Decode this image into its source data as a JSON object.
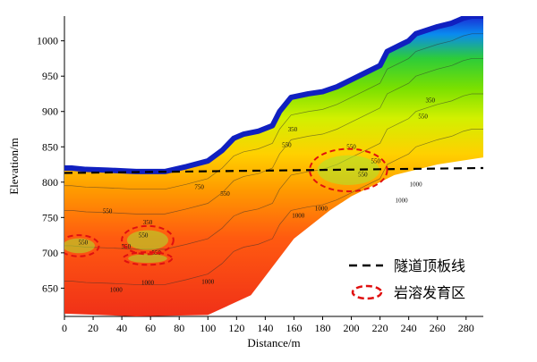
{
  "chart_data": {
    "type": "heatmap",
    "xlabel": "Distance/m",
    "ylabel": "Elevation/m",
    "xlim": [
      0,
      292
    ],
    "ylim": [
      610,
      1035
    ],
    "x_ticks": [
      0,
      20,
      40,
      60,
      80,
      100,
      120,
      140,
      160,
      180,
      200,
      220,
      240,
      260,
      280
    ],
    "y_ticks": [
      650,
      700,
      750,
      800,
      850,
      900,
      950,
      1000
    ],
    "grid": false,
    "colorscale": [
      "#1a2ad4",
      "#0a8af0",
      "#2ccc3a",
      "#7ae000",
      "#d2f000",
      "#ffd000",
      "#ff9a00",
      "#ff5a10",
      "#f03018"
    ],
    "surface_profile": {
      "x": [
        0,
        5,
        15,
        30,
        50,
        70,
        85,
        100,
        110,
        118,
        125,
        135,
        145,
        150,
        158,
        170,
        180,
        190,
        200,
        210,
        220,
        225,
        235,
        240,
        245,
        260,
        270,
        278,
        284,
        292
      ],
      "y": [
        820,
        820,
        818,
        817,
        815,
        815,
        822,
        830,
        845,
        862,
        868,
        872,
        880,
        900,
        920,
        925,
        928,
        935,
        945,
        955,
        965,
        985,
        995,
        1000,
        1010,
        1020,
        1025,
        1032,
        1035,
        1035
      ]
    },
    "bottom_profile": {
      "x": [
        0,
        50,
        100,
        130,
        145,
        160,
        185,
        200,
        230,
        260,
        292
      ],
      "y": [
        614,
        610,
        612,
        640,
        680,
        720,
        760,
        780,
        810,
        825,
        835
      ]
    },
    "tunnel_roof_line": {
      "name": "隧道顶板线",
      "x": [
        0,
        292
      ],
      "y": [
        813,
        820
      ],
      "color": "#000000",
      "style": "dashed"
    },
    "karst_zones": [
      {
        "name": "岩溶发育区",
        "center": [
          10,
          710
        ],
        "rx": 14,
        "ry": 15
      },
      {
        "name": "岩溶发育区",
        "center": [
          58,
          718
        ],
        "rx": 18,
        "ry": 20
      },
      {
        "name": "岩溶发育区",
        "center": [
          58,
          692
        ],
        "rx": 17,
        "ry": 9
      },
      {
        "name": "岩溶发育区",
        "center": [
          198,
          817
        ],
        "rx": 27,
        "ry": 30
      }
    ],
    "contour_labels": [
      {
        "text": "550",
        "x": 13,
        "y": 712
      },
      {
        "text": "550",
        "x": 30,
        "y": 756
      },
      {
        "text": "350",
        "x": 58,
        "y": 740
      },
      {
        "text": "550",
        "x": 55,
        "y": 722
      },
      {
        "text": "550",
        "x": 43,
        "y": 706
      },
      {
        "text": "550",
        "x": 64,
        "y": 697
      },
      {
        "text": "1000",
        "x": 58,
        "y": 655
      },
      {
        "text": "1000",
        "x": 36,
        "y": 645
      },
      {
        "text": "1000",
        "x": 100,
        "y": 656
      },
      {
        "text": "750",
        "x": 94,
        "y": 790
      },
      {
        "text": "550",
        "x": 112,
        "y": 781
      },
      {
        "text": "550",
        "x": 155,
        "y": 850
      },
      {
        "text": "350",
        "x": 159,
        "y": 872
      },
      {
        "text": "550",
        "x": 200,
        "y": 847
      },
      {
        "text": "550",
        "x": 217,
        "y": 827
      },
      {
        "text": "550",
        "x": 208,
        "y": 808
      },
      {
        "text": "550",
        "x": 250,
        "y": 890
      },
      {
        "text": "350",
        "x": 255,
        "y": 913
      },
      {
        "text": "1000",
        "x": 163,
        "y": 750
      },
      {
        "text": "1000",
        "x": 179,
        "y": 760
      },
      {
        "text": "1000",
        "x": 235,
        "y": 771
      },
      {
        "text": "1000",
        "x": 245,
        "y": 794
      }
    ],
    "legend": [
      {
        "label": "隧道顶板线",
        "symbol": "dashed-line"
      },
      {
        "label": "岩溶发育区",
        "symbol": "dashed-ellipse-red"
      }
    ]
  }
}
